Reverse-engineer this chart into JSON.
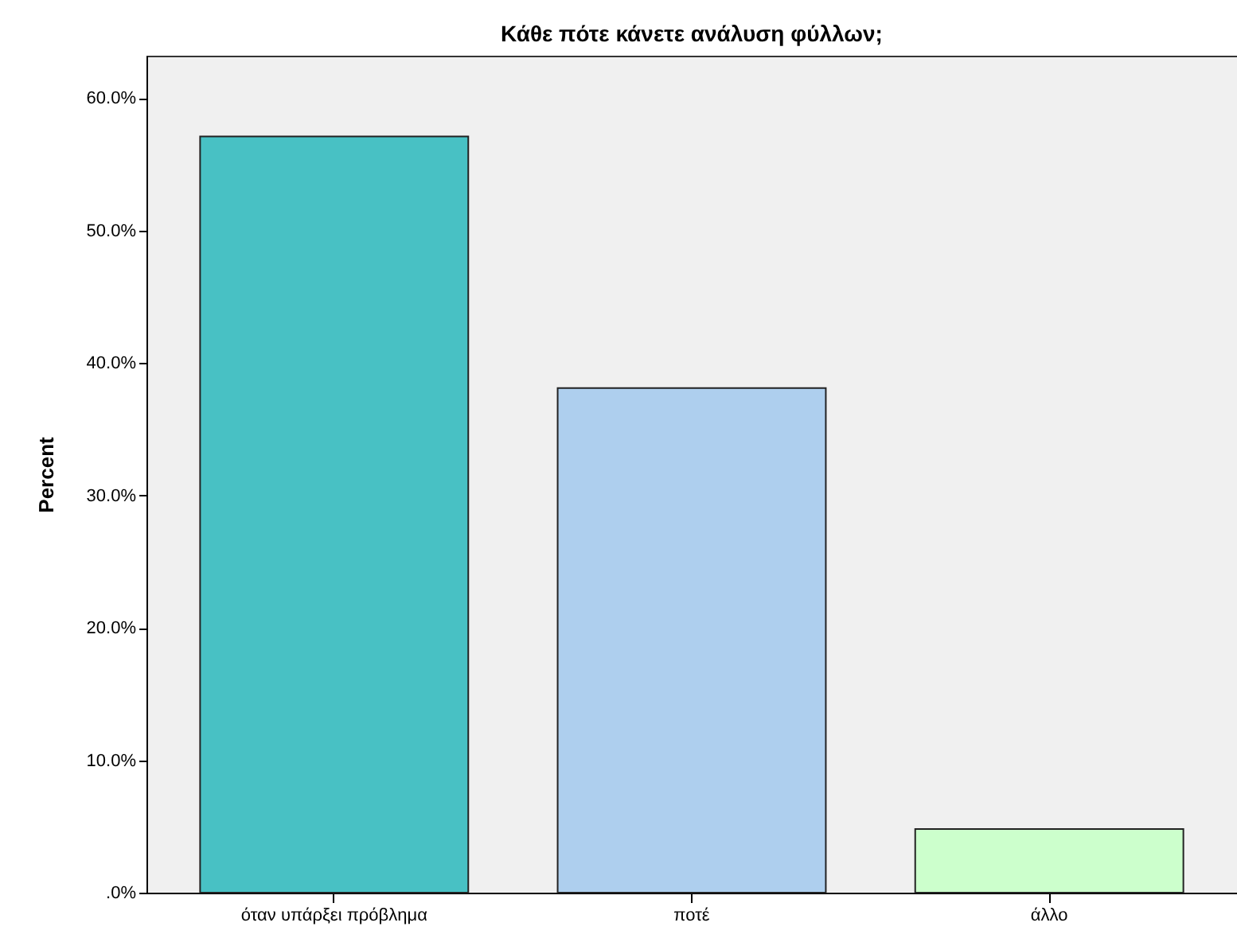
{
  "chart_data": {
    "type": "bar",
    "title": "Κάθε πότε κάνετε ανάλυση φύλλων;",
    "ylabel": "Percent",
    "categories": [
      "όταν υπάρξει πρόβλημα",
      "ποτέ",
      "άλλο"
    ],
    "values": [
      57.1,
      38.1,
      4.8
    ],
    "colors": [
      "#48c1c4",
      "#aecfee",
      "#ccffcc"
    ],
    "ylim": [
      0,
      63.2
    ],
    "yticks": [
      {
        "value": 0,
        "label": ".0%"
      },
      {
        "value": 10,
        "label": "10.0%"
      },
      {
        "value": 20,
        "label": "20.0%"
      },
      {
        "value": 30,
        "label": "30.0%"
      },
      {
        "value": 40,
        "label": "40.0%"
      },
      {
        "value": 50,
        "label": "50.0%"
      },
      {
        "value": 60,
        "label": "60.0%"
      }
    ],
    "grid": false
  }
}
